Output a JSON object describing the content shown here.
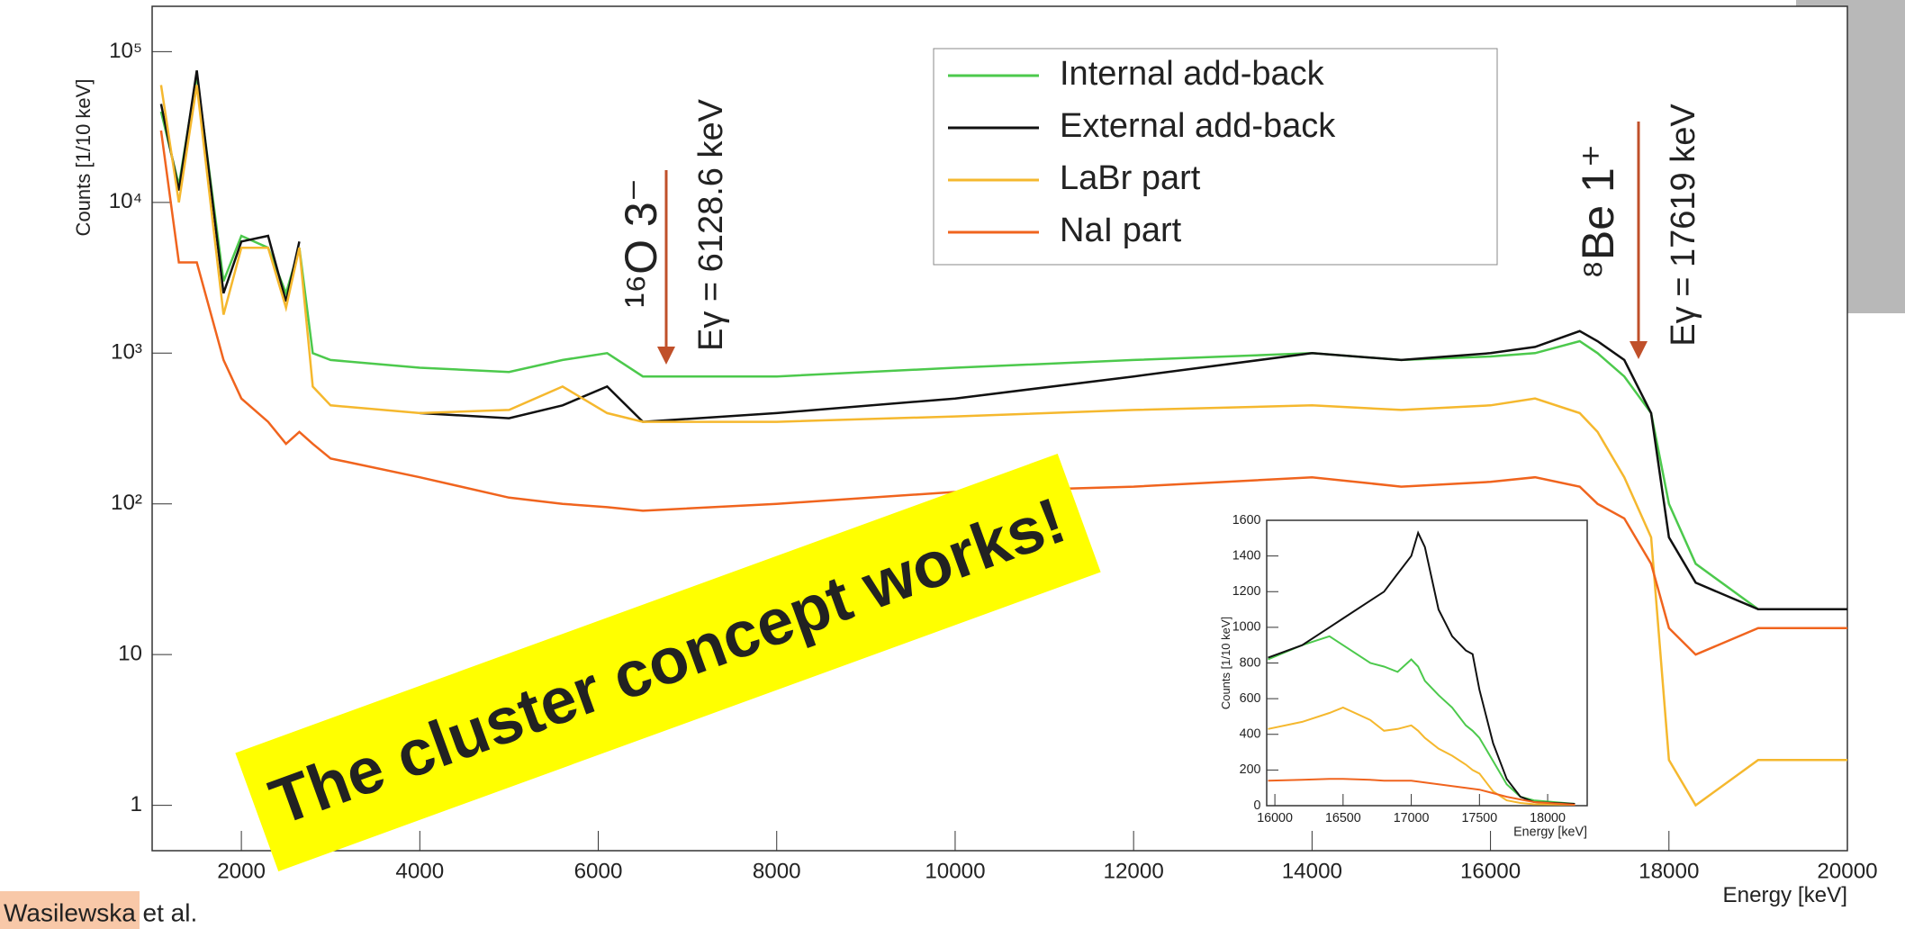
{
  "chart_data": [
    {
      "type": "line",
      "yscale": "log",
      "ylabel": "Counts [1/10 keV]",
      "xlabel": "Energy [keV]",
      "x": [
        1100,
        1300,
        1500,
        1800,
        2000,
        2300,
        2500,
        2650,
        2800,
        3000,
        4000,
        5000,
        5600,
        6100,
        6500,
        8000,
        10000,
        12000,
        14000,
        15000,
        16000,
        16500,
        17000,
        17200,
        17500,
        17800,
        18000,
        18300,
        19000,
        20000
      ],
      "series": [
        {
          "name": "Internal add-back",
          "color": "#4cc94c",
          "values": [
            40000,
            13000,
            70000,
            3000,
            6000,
            5000,
            2500,
            5000,
            1000,
            900,
            800,
            750,
            900,
            1000,
            700,
            700,
            800,
            900,
            1000,
            900,
            950,
            1000,
            1200,
            1000,
            700,
            400,
            100,
            40,
            20,
            20
          ]
        },
        {
          "name": "External add-back",
          "color": "#111111",
          "values": [
            45000,
            12000,
            75000,
            2500,
            5500,
            6000,
            2200,
            5500,
            null,
            null,
            400,
            370,
            450,
            600,
            350,
            400,
            500,
            700,
            1000,
            900,
            1000,
            1100,
            1400,
            1200,
            900,
            400,
            60,
            30,
            20,
            20
          ]
        },
        {
          "name": "LaBr part",
          "color": "#f5b82e",
          "values": [
            60000,
            10000,
            60000,
            1800,
            5000,
            5000,
            2000,
            5000,
            600,
            450,
            400,
            420,
            600,
            400,
            350,
            350,
            380,
            420,
            450,
            420,
            450,
            500,
            400,
            300,
            150,
            60,
            2,
            1,
            2,
            2
          ]
        },
        {
          "name": "NaI part",
          "color": "#f0641e",
          "values": [
            30000,
            4000,
            4000,
            900,
            500,
            350,
            250,
            300,
            250,
            200,
            150,
            110,
            100,
            95,
            90,
            100,
            120,
            130,
            150,
            130,
            140,
            150,
            130,
            100,
            80,
            40,
            15,
            10,
            15,
            15
          ]
        }
      ],
      "xlim": [
        1000,
        20000
      ],
      "xticks": [
        2000,
        4000,
        6000,
        8000,
        10000,
        12000,
        14000,
        16000,
        18000,
        20000
      ],
      "ylim": [
        0.5,
        200000
      ],
      "yticks": [
        1,
        10,
        {
          "value": 100,
          "label": "10²"
        },
        {
          "value": 1000,
          "label": "10³"
        },
        {
          "value": 10000,
          "label": "10⁴"
        },
        {
          "value": 100000,
          "label": "10⁵"
        }
      ],
      "legend": "upper center",
      "annotations": [
        "¹⁶O 3⁻",
        "Eγ = 6128.6 keV",
        "⁸Be 1⁺",
        "Eγ = 17619 keV",
        "The cluster concept works!",
        "Wasilewska et al."
      ]
    },
    {
      "type": "line",
      "ylabel": "Counts [1/10 keV]",
      "xlabel": "Energy [keV]",
      "x": [
        15950,
        16200,
        16400,
        16500,
        16700,
        16800,
        16900,
        17000,
        17050,
        17100,
        17200,
        17300,
        17400,
        17450,
        17500,
        17600,
        17700,
        17800,
        17900,
        18200
      ],
      "series": [
        {
          "color": "#4cc94c",
          "values": [
            820,
            900,
            950,
            900,
            800,
            780,
            750,
            820,
            780,
            700,
            620,
            550,
            450,
            420,
            380,
            250,
            120,
            50,
            30,
            10
          ]
        },
        {
          "color": "#111111",
          "values": [
            830,
            900,
            1000,
            1050,
            1150,
            1200,
            1300,
            1400,
            1530,
            1450,
            1100,
            950,
            870,
            850,
            650,
            350,
            150,
            50,
            20,
            10
          ]
        },
        {
          "color": "#f5b82e",
          "values": [
            430,
            470,
            520,
            550,
            480,
            420,
            430,
            450,
            420,
            380,
            320,
            280,
            230,
            200,
            180,
            80,
            30,
            15,
            8,
            5
          ]
        },
        {
          "color": "#f0641e",
          "values": [
            140,
            145,
            150,
            150,
            145,
            140,
            140,
            140,
            135,
            130,
            120,
            110,
            100,
            95,
            90,
            70,
            50,
            35,
            20,
            5
          ]
        }
      ],
      "xlim": [
        15940,
        18290
      ],
      "xticks": [
        16000,
        16500,
        17000,
        17500,
        18000
      ],
      "ylim": [
        0,
        1600
      ],
      "yticks": [
        0,
        200,
        400,
        600,
        800,
        1000,
        1200,
        1400,
        1600
      ]
    }
  ]
}
